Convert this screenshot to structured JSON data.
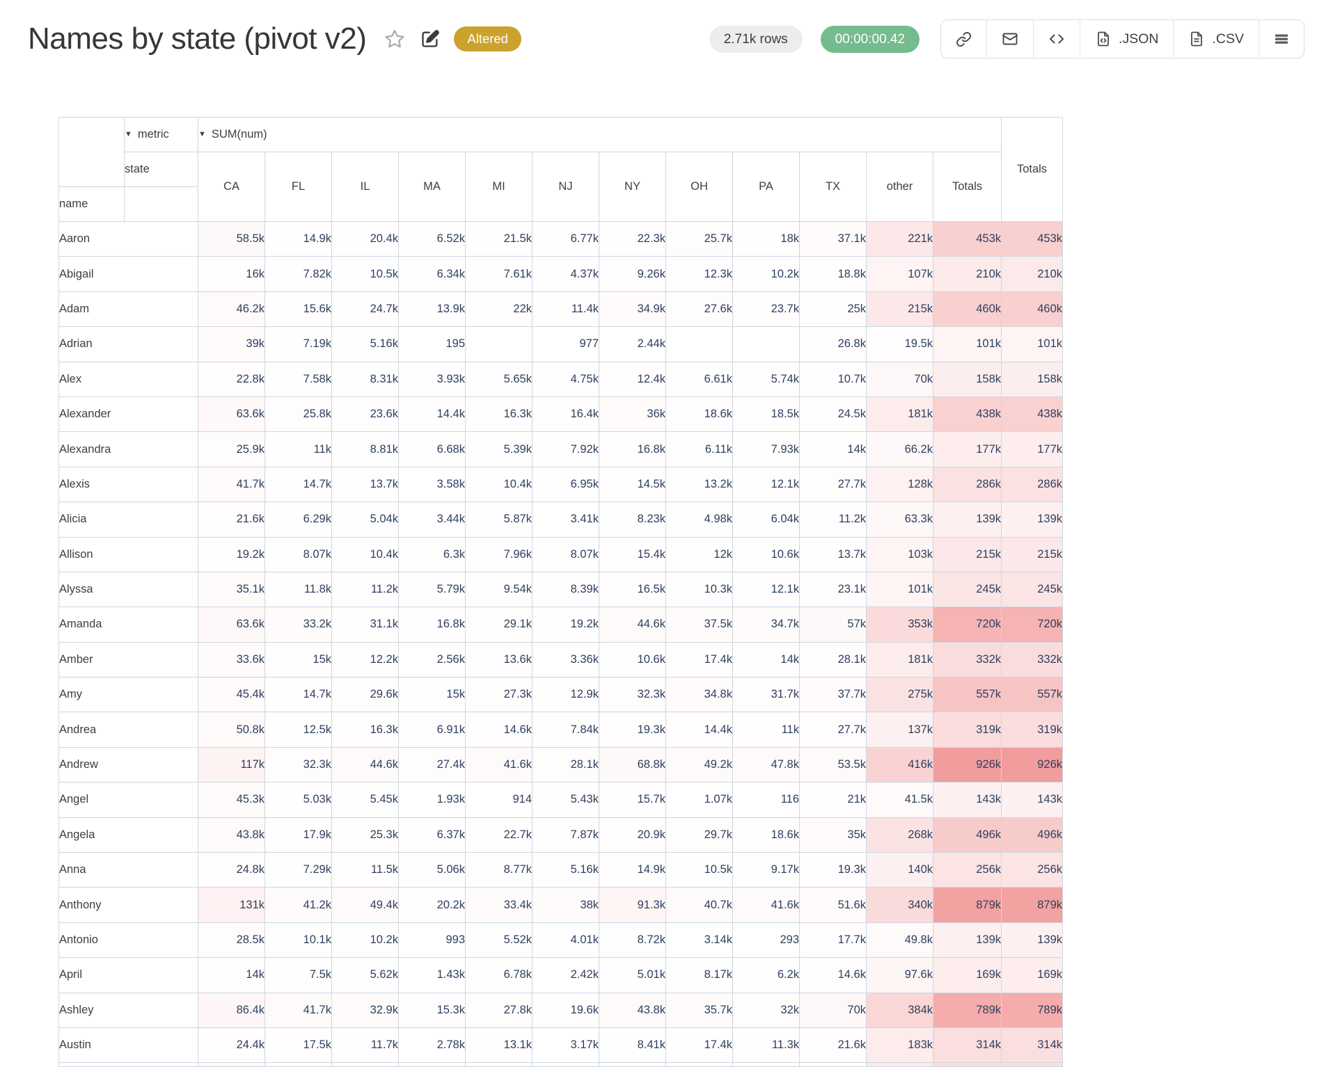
{
  "header": {
    "title": "Names by state (pivot v2)",
    "altered_badge": "Altered",
    "row_count": "2.71k rows",
    "duration": "00:00:00.42",
    "export_json_label": ".JSON",
    "export_csv_label": ".CSV"
  },
  "colors": {
    "altered_bg": "#cba22d",
    "timer_bg": "#74bc8d",
    "rows_pill_bg": "#ededed",
    "table_border": "#ccd7e0",
    "heat_overlay": "rgb(230,60,60)",
    "number_text": "#2e3f5e"
  },
  "pivot": {
    "collapse_icon": "▼",
    "metric_label": "metric",
    "metric_value": "SUM(num)",
    "state_label": "state",
    "name_label": "name",
    "columns": [
      "CA",
      "FL",
      "IL",
      "MA",
      "MI",
      "NJ",
      "NY",
      "OH",
      "PA",
      "TX",
      "other",
      "Totals"
    ],
    "grand_total_label": "Totals",
    "heat_max": "926k",
    "rows": [
      {
        "name": "Aaron",
        "values": [
          "58.5k",
          "14.9k",
          "20.4k",
          "6.52k",
          "21.5k",
          "6.77k",
          "22.3k",
          "25.7k",
          "18k",
          "37.1k",
          "221k"
        ],
        "total": "453k"
      },
      {
        "name": "Abigail",
        "values": [
          "16k",
          "7.82k",
          "10.5k",
          "6.34k",
          "7.61k",
          "4.37k",
          "9.26k",
          "12.3k",
          "10.2k",
          "18.8k",
          "107k"
        ],
        "total": "210k"
      },
      {
        "name": "Adam",
        "values": [
          "46.2k",
          "15.6k",
          "24.7k",
          "13.9k",
          "22k",
          "11.4k",
          "34.9k",
          "27.6k",
          "23.7k",
          "25k",
          "215k"
        ],
        "total": "460k"
      },
      {
        "name": "Adrian",
        "values": [
          "39k",
          "7.19k",
          "5.16k",
          "195",
          "",
          "977",
          "2.44k",
          "",
          "",
          "26.8k",
          "19.5k"
        ],
        "total": "101k"
      },
      {
        "name": "Alex",
        "values": [
          "22.8k",
          "7.58k",
          "8.31k",
          "3.93k",
          "5.65k",
          "4.75k",
          "12.4k",
          "6.61k",
          "5.74k",
          "10.7k",
          "70k"
        ],
        "total": "158k"
      },
      {
        "name": "Alexander",
        "values": [
          "63.6k",
          "25.8k",
          "23.6k",
          "14.4k",
          "16.3k",
          "16.4k",
          "36k",
          "18.6k",
          "18.5k",
          "24.5k",
          "181k"
        ],
        "total": "438k"
      },
      {
        "name": "Alexandra",
        "values": [
          "25.9k",
          "11k",
          "8.81k",
          "6.68k",
          "5.39k",
          "7.92k",
          "16.8k",
          "6.11k",
          "7.93k",
          "14k",
          "66.2k"
        ],
        "total": "177k"
      },
      {
        "name": "Alexis",
        "values": [
          "41.7k",
          "14.7k",
          "13.7k",
          "3.58k",
          "10.4k",
          "6.95k",
          "14.5k",
          "13.2k",
          "12.1k",
          "27.7k",
          "128k"
        ],
        "total": "286k"
      },
      {
        "name": "Alicia",
        "values": [
          "21.6k",
          "6.29k",
          "5.04k",
          "3.44k",
          "5.87k",
          "3.41k",
          "8.23k",
          "4.98k",
          "6.04k",
          "11.2k",
          "63.3k"
        ],
        "total": "139k"
      },
      {
        "name": "Allison",
        "values": [
          "19.2k",
          "8.07k",
          "10.4k",
          "6.3k",
          "7.96k",
          "8.07k",
          "15.4k",
          "12k",
          "10.6k",
          "13.7k",
          "103k"
        ],
        "total": "215k"
      },
      {
        "name": "Alyssa",
        "values": [
          "35.1k",
          "11.8k",
          "11.2k",
          "5.79k",
          "9.54k",
          "8.39k",
          "16.5k",
          "10.3k",
          "12.1k",
          "23.1k",
          "101k"
        ],
        "total": "245k"
      },
      {
        "name": "Amanda",
        "values": [
          "63.6k",
          "33.2k",
          "31.1k",
          "16.8k",
          "29.1k",
          "19.2k",
          "44.6k",
          "37.5k",
          "34.7k",
          "57k",
          "353k"
        ],
        "total": "720k"
      },
      {
        "name": "Amber",
        "values": [
          "33.6k",
          "15k",
          "12.2k",
          "2.56k",
          "13.6k",
          "3.36k",
          "10.6k",
          "17.4k",
          "14k",
          "28.1k",
          "181k"
        ],
        "total": "332k"
      },
      {
        "name": "Amy",
        "values": [
          "45.4k",
          "14.7k",
          "29.6k",
          "15k",
          "27.3k",
          "12.9k",
          "32.3k",
          "34.8k",
          "31.7k",
          "37.7k",
          "275k"
        ],
        "total": "557k"
      },
      {
        "name": "Andrea",
        "values": [
          "50.8k",
          "12.5k",
          "16.3k",
          "6.91k",
          "14.6k",
          "7.84k",
          "19.3k",
          "14.4k",
          "11k",
          "27.7k",
          "137k"
        ],
        "total": "319k"
      },
      {
        "name": "Andrew",
        "values": [
          "117k",
          "32.3k",
          "44.6k",
          "27.4k",
          "41.6k",
          "28.1k",
          "68.8k",
          "49.2k",
          "47.8k",
          "53.5k",
          "416k"
        ],
        "total": "926k"
      },
      {
        "name": "Angel",
        "values": [
          "45.3k",
          "5.03k",
          "5.45k",
          "1.93k",
          "914",
          "5.43k",
          "15.7k",
          "1.07k",
          "116",
          "21k",
          "41.5k"
        ],
        "total": "143k"
      },
      {
        "name": "Angela",
        "values": [
          "43.8k",
          "17.9k",
          "25.3k",
          "6.37k",
          "22.7k",
          "7.87k",
          "20.9k",
          "29.7k",
          "18.6k",
          "35k",
          "268k"
        ],
        "total": "496k"
      },
      {
        "name": "Anna",
        "values": [
          "24.8k",
          "7.29k",
          "11.5k",
          "5.06k",
          "8.77k",
          "5.16k",
          "14.9k",
          "10.5k",
          "9.17k",
          "19.3k",
          "140k"
        ],
        "total": "256k"
      },
      {
        "name": "Anthony",
        "values": [
          "131k",
          "41.2k",
          "49.4k",
          "20.2k",
          "33.4k",
          "38k",
          "91.3k",
          "40.7k",
          "41.6k",
          "51.6k",
          "340k"
        ],
        "total": "879k"
      },
      {
        "name": "Antonio",
        "values": [
          "28.5k",
          "10.1k",
          "10.2k",
          "993",
          "5.52k",
          "4.01k",
          "8.72k",
          "3.14k",
          "293",
          "17.7k",
          "49.8k"
        ],
        "total": "139k"
      },
      {
        "name": "April",
        "values": [
          "14k",
          "7.5k",
          "5.62k",
          "1.43k",
          "6.78k",
          "2.42k",
          "5.01k",
          "8.17k",
          "6.2k",
          "14.6k",
          "97.6k"
        ],
        "total": "169k"
      },
      {
        "name": "Ashley",
        "values": [
          "86.4k",
          "41.7k",
          "32.9k",
          "15.3k",
          "27.8k",
          "19.6k",
          "43.8k",
          "35.7k",
          "32k",
          "70k",
          "384k"
        ],
        "total": "789k"
      },
      {
        "name": "Austin",
        "values": [
          "24.4k",
          "17.5k",
          "11.7k",
          "2.78k",
          "13.1k",
          "3.17k",
          "8.41k",
          "17.4k",
          "11.3k",
          "21.6k",
          "183k"
        ],
        "total": "314k"
      }
    ],
    "partial_next_row_alphas": [
      0.03,
      0.01,
      0.008,
      0.004,
      0.008,
      0.003,
      0.008,
      0.01,
      0.007,
      0.013,
      0.11,
      0.17,
      0.17
    ]
  }
}
